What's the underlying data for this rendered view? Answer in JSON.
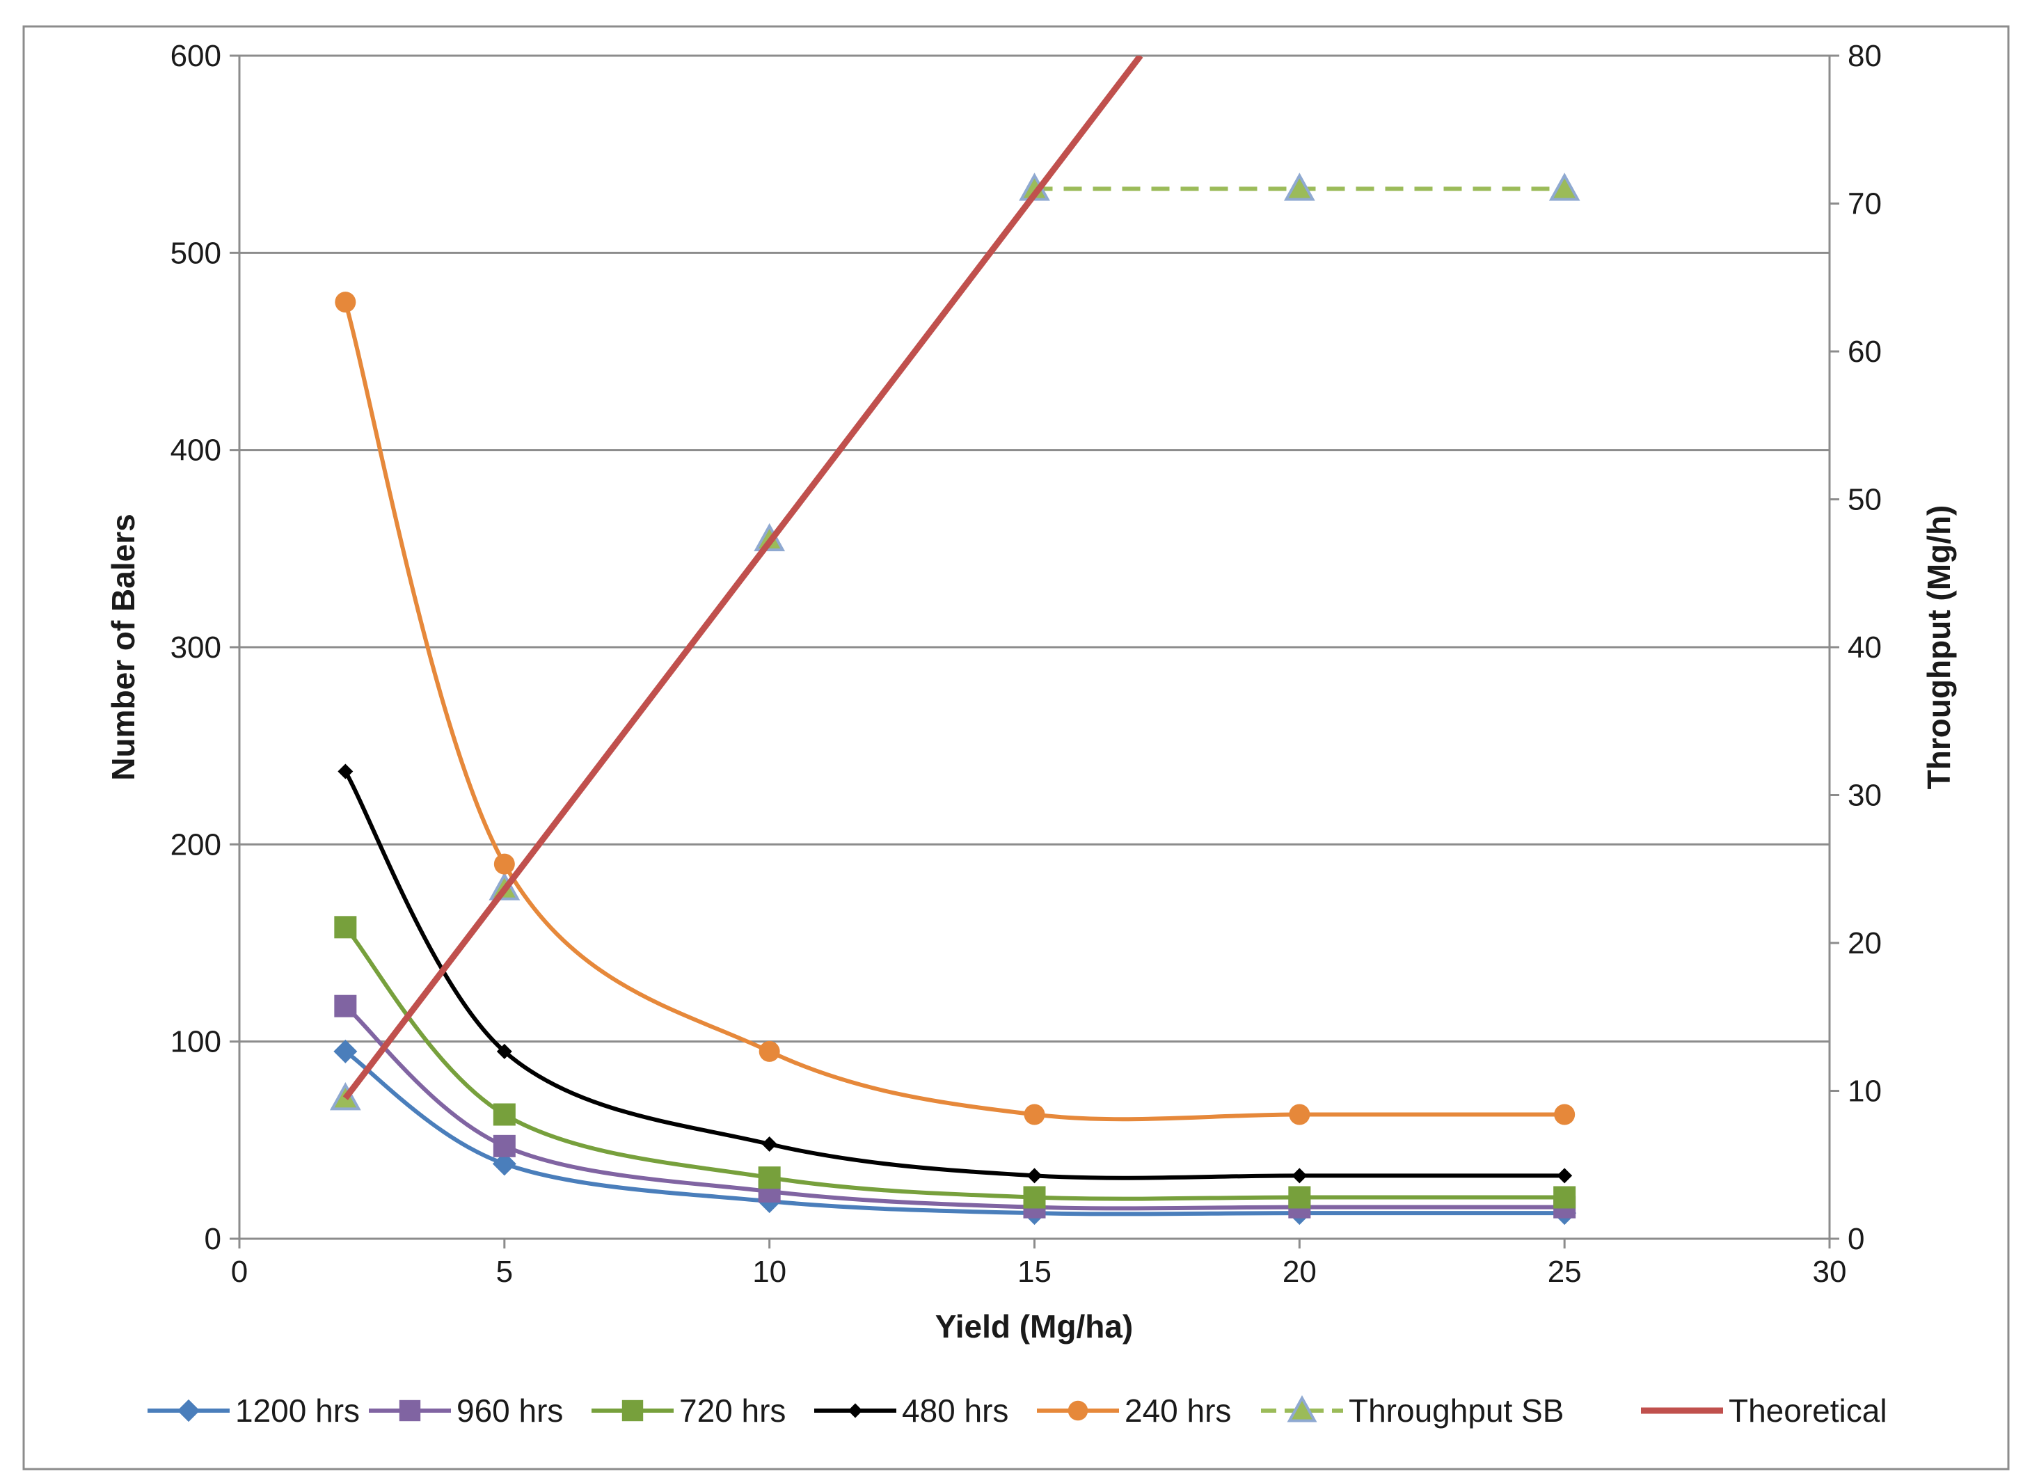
{
  "chart_data": {
    "type": "line",
    "title": "",
    "xlabel": "Yield (Mg/ha)",
    "ylabel": "Number of Balers",
    "y2label": "Throughput (Mg/h)",
    "xlim": [
      0,
      30
    ],
    "ylim": [
      0,
      600
    ],
    "y2lim": [
      0,
      80
    ],
    "xticks": [
      "0",
      "5",
      "10",
      "15",
      "20",
      "25",
      "30"
    ],
    "yticks": [
      "0",
      "100",
      "200",
      "300",
      "400",
      "500",
      "600"
    ],
    "y2ticks": [
      "0",
      "10",
      "20",
      "30",
      "40",
      "50",
      "60",
      "70",
      "80"
    ],
    "grid": true,
    "legend_position": "bottom",
    "x": [
      2,
      5,
      10,
      15,
      20,
      25
    ],
    "series": [
      {
        "name": "1200 hrs",
        "axis": "left",
        "color": "#4a7ebb",
        "marker": "diamond",
        "dash": false,
        "values": [
          95,
          38,
          19,
          13,
          13,
          13
        ]
      },
      {
        "name": "960 hrs",
        "axis": "left",
        "color": "#8064a2",
        "marker": "square",
        "dash": false,
        "values": [
          118,
          47,
          24,
          16,
          16,
          16
        ]
      },
      {
        "name": "720 hrs",
        "axis": "left",
        "color": "#77a03c",
        "marker": "square",
        "dash": false,
        "values": [
          158,
          63,
          31,
          21,
          21,
          21
        ]
      },
      {
        "name": "480 hrs",
        "axis": "left",
        "color": "#000000",
        "marker": "smalldiamond",
        "dash": false,
        "values": [
          237,
          95,
          48,
          32,
          32,
          32
        ]
      },
      {
        "name": "240 hrs",
        "axis": "left",
        "color": "#e6883a",
        "marker": "circle",
        "dash": false,
        "values": [
          475,
          190,
          95,
          63,
          63,
          63
        ]
      },
      {
        "name": "Throughput SB",
        "axis": "right",
        "color": "#9bbb59",
        "marker": "triangle",
        "dash": true,
        "values": [
          9.5,
          23.7,
          47.3,
          71,
          71,
          71
        ]
      },
      {
        "name": "Theoretical",
        "axis": "right",
        "color": "#c0504d",
        "marker": "none",
        "dash": false,
        "x": [
          2,
          17
        ],
        "values": [
          9.5,
          80
        ]
      }
    ]
  }
}
